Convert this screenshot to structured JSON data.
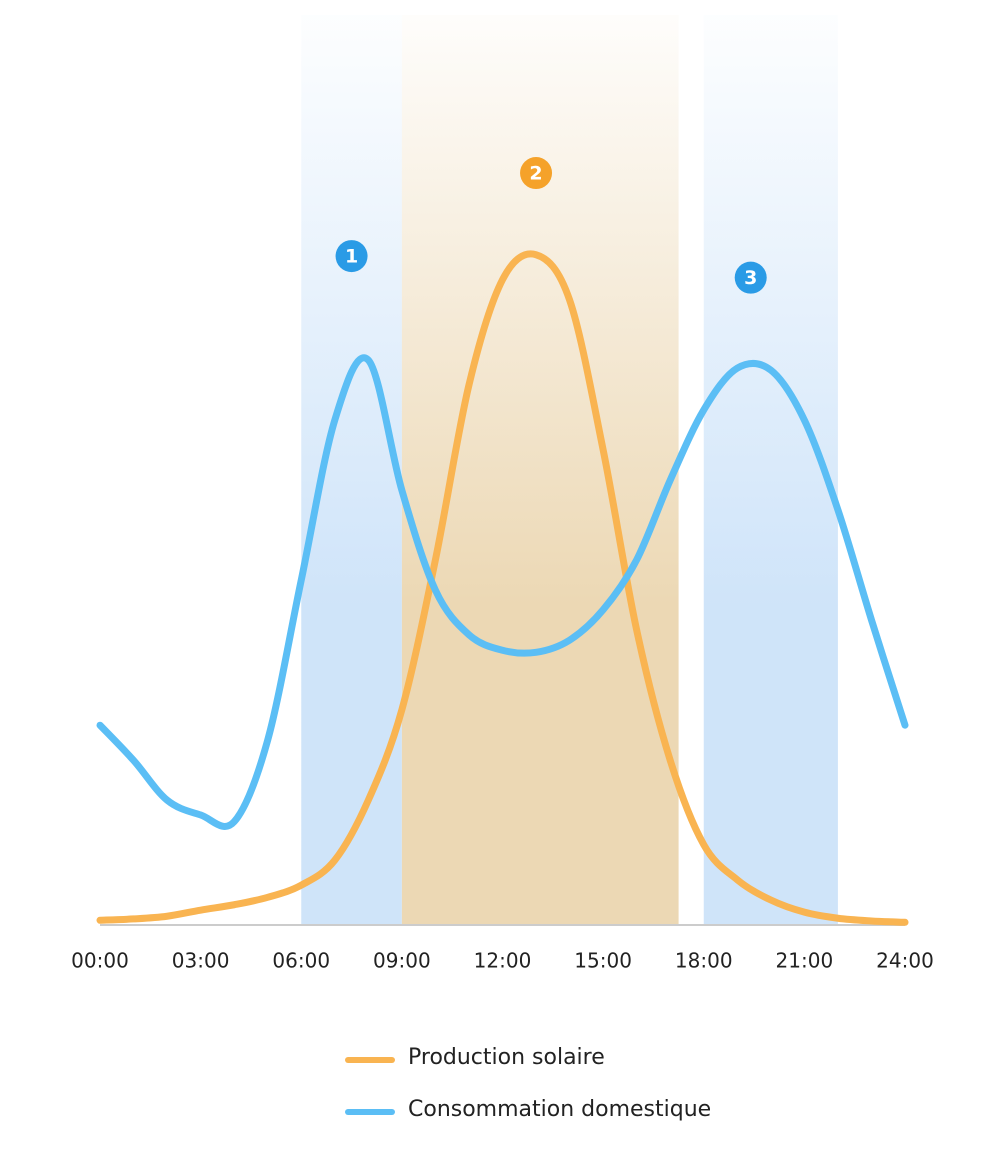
{
  "chart_data": {
    "type": "line",
    "x": [
      0,
      1,
      2,
      3,
      4,
      5,
      6,
      7,
      8,
      9,
      10,
      11,
      12,
      13,
      14,
      15,
      16,
      17,
      18,
      19,
      20,
      21,
      22,
      23,
      24
    ],
    "xlim": [
      0,
      24
    ],
    "xticks": [
      {
        "value": 0,
        "label": "00:00"
      },
      {
        "value": 3,
        "label": "03:00"
      },
      {
        "value": 6,
        "label": "06:00"
      },
      {
        "value": 9,
        "label": "09:00"
      },
      {
        "value": 12,
        "label": "12:00"
      },
      {
        "value": 15,
        "label": "15:00"
      },
      {
        "value": 18,
        "label": "18:00"
      },
      {
        "value": 21,
        "label": "21:00"
      },
      {
        "value": 24,
        "label": "24:00"
      }
    ],
    "series": [
      {
        "name": "Production solaire",
        "color": "#f9b451",
        "values": [
          0.7,
          0.9,
          1.3,
          2.2,
          3.0,
          4.1,
          5.9,
          9.6,
          18.5,
          31.9,
          54.1,
          80.0,
          95.6,
          99.3,
          92.6,
          70.4,
          43.7,
          24.4,
          11.9,
          6.7,
          3.7,
          1.9,
          1.0,
          0.6,
          0.4
        ]
      },
      {
        "name": "Consommation domestique",
        "color": "#5bbef5",
        "values": [
          29.6,
          24.4,
          18.5,
          16.3,
          15.3,
          27.4,
          51.1,
          74.8,
          83.7,
          64.4,
          49.6,
          43.0,
          40.7,
          40.4,
          42.2,
          46.7,
          54.1,
          65.9,
          76.3,
          82.5,
          82.2,
          74.8,
          61.5,
          45.2,
          29.6
        ]
      }
    ],
    "highlight_ranges": [
      {
        "from": 6,
        "to": 9,
        "color": "#cfe4f9"
      },
      {
        "from": 9,
        "to": 17.25,
        "color": "#ecd8b4"
      },
      {
        "from": 18,
        "to": 22,
        "color": "#cfe4f9"
      }
    ],
    "annotations": [
      {
        "text": "1",
        "x": 7.5,
        "y": 99.1,
        "color": "#2a9be6"
      },
      {
        "text": "2",
        "x": 13,
        "y": 111.4,
        "color": "#f5a22a"
      },
      {
        "text": "3",
        "x": 19.4,
        "y": 95.9,
        "color": "#2a9be6"
      }
    ]
  }
}
